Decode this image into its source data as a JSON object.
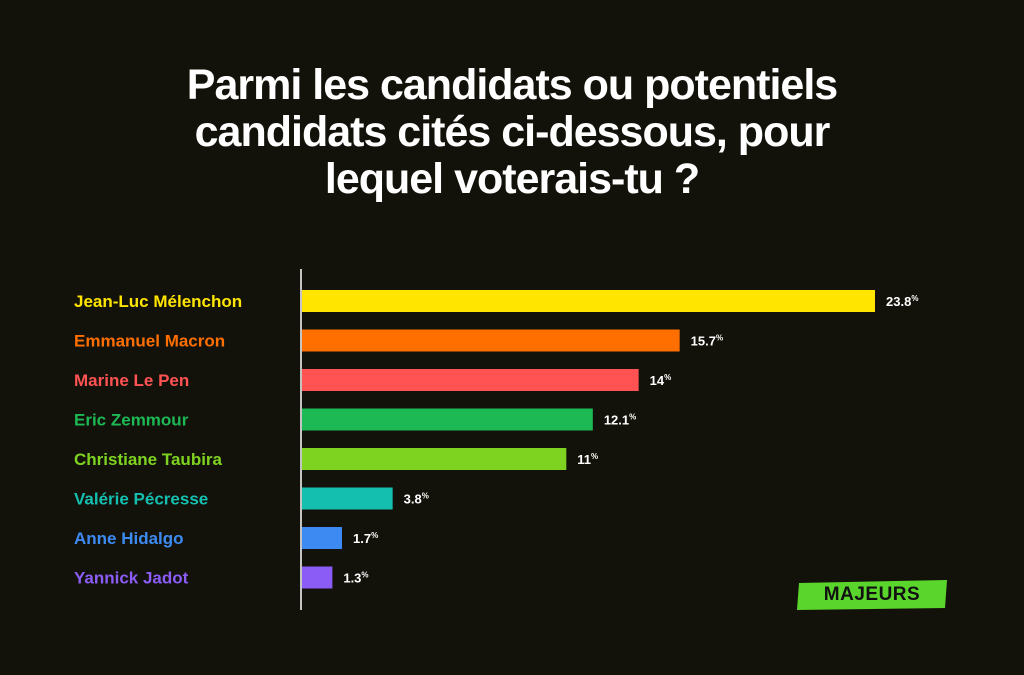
{
  "title_lines": [
    "Parmi les candidats ou potentiels",
    "candidats cités ci-dessous, pour",
    "lequel voterais-tu ?"
  ],
  "chart_data": {
    "type": "bar",
    "orientation": "horizontal",
    "categories": [
      "Jean-Luc Mélenchon",
      "Emmanuel Macron",
      "Marine Le Pen",
      "Eric Zemmour",
      "Christiane Taubira",
      "Valérie Pécresse",
      "Anne Hidalgo",
      "Yannick Jadot"
    ],
    "values": [
      23.8,
      15.7,
      14,
      12.1,
      11,
      3.8,
      1.7,
      1.3
    ],
    "value_labels": [
      "23.8",
      "15.7",
      "14",
      "12.1",
      "11",
      "3.8",
      "1.7",
      "1.3"
    ],
    "unit": "%",
    "colors": [
      "#ffe500",
      "#ff6f00",
      "#ff5252",
      "#1db954",
      "#7ed321",
      "#14bfb0",
      "#3d8bf2",
      "#8b5cf6"
    ],
    "xlim": [
      0,
      23.8
    ],
    "grid": false
  },
  "brand": {
    "label": "MAJEURS",
    "color": "#5ad52b"
  }
}
